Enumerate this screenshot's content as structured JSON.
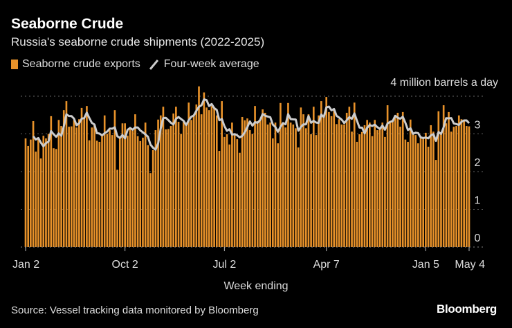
{
  "title": "Seaborne Crude",
  "subtitle": "Russia's seaborne crude shipments (2022-2025)",
  "source": "Source: Vessel tracking data monitored by Bloomberg",
  "logo": "Bloomberg",
  "colors": {
    "background": "#000000",
    "bars": "#e8922a",
    "average_line": "#cccccc",
    "grid": "#666666"
  },
  "chart_data": {
    "type": "bar",
    "xlabel": "Week ending",
    "ylabel": "4 million barrels a day",
    "ylim": [
      0,
      4
    ],
    "yticks": [
      "0",
      "1",
      "2",
      "3"
    ],
    "grid": true,
    "legend_position": "top-left",
    "xticks": [
      {
        "label": "Jan 2",
        "week": 0
      },
      {
        "label": "Oct 2",
        "week": 39
      },
      {
        "label": "Jul 2",
        "week": 78
      },
      {
        "label": "Apr 7",
        "week": 118
      },
      {
        "label": "Jan 5",
        "week": 157
      },
      {
        "label": "May 4",
        "week": 174
      }
    ],
    "series": [
      {
        "name": "Seaborne crude exports",
        "type": "bar",
        "values": [
          2.88,
          2.68,
          2.85,
          3.34,
          2.53,
          2.85,
          2.35,
          2.95,
          2.88,
          3.0,
          3.47,
          2.62,
          2.6,
          3.37,
          3.21,
          3.63,
          3.87,
          3.19,
          3.2,
          3.36,
          3.17,
          3.39,
          3.69,
          3.43,
          3.74,
          2.83,
          3.17,
          3.26,
          2.82,
          2.79,
          2.97,
          3.49,
          3.0,
          3.1,
          2.97,
          3.63,
          2.05,
          2.92,
          3.28,
          3.28,
          2.95,
          3.12,
          3.1,
          3.52,
          2.94,
          2.81,
          2.9,
          3.3,
          2.7,
          1.96,
          2.57,
          3.1,
          3.38,
          3.49,
          3.72,
          3.12,
          3.13,
          3.21,
          3.54,
          3.72,
          3.32,
          3.0,
          3.34,
          3.28,
          3.83,
          3.37,
          3.47,
          3.78,
          4.26,
          3.52,
          4.1,
          3.7,
          3.63,
          3.74,
          3.67,
          3.49,
          2.55,
          3.87,
          2.92,
          2.99,
          2.72,
          3.3,
          2.97,
          2.86,
          2.5,
          3.45,
          3.36,
          3.41,
          3.1,
          3.0,
          3.74,
          3.34,
          3.38,
          3.65,
          3.56,
          3.25,
          3.3,
          2.88,
          3.3,
          2.75,
          3.82,
          3.28,
          3.17,
          3.82,
          3.3,
          3.25,
          3.15,
          2.64,
          3.7,
          3.52,
          3.15,
          3.52,
          2.99,
          3.72,
          2.97,
          3.49,
          3.87,
          3.47,
          3.98,
          3.58,
          3.47,
          3.61,
          3.26,
          3.39,
          3.25,
          3.25,
          3.56,
          3.72,
          3.06,
          3.83,
          2.79,
          2.99,
          3.05,
          3.23,
          3.37,
          3.3,
          2.94,
          3.37,
          3.1,
          3.12,
          3.3,
          2.92,
          3.76,
          3.3,
          3.37,
          3.49,
          3.56,
          3.19,
          3.58,
          2.85,
          2.79,
          3.38,
          2.99,
          2.97,
          2.75,
          2.92,
          2.92,
          3.03,
          2.66,
          3.23,
          3.06,
          2.31,
          3.6,
          3.03,
          3.76,
          3.28,
          3.58,
          3.06,
          3.19,
          3.21,
          3.49,
          3.39,
          3.34,
          3.21,
          3.2
        ]
      },
      {
        "name": "Four-week average",
        "type": "line",
        "window_weeks": 4
      }
    ]
  }
}
